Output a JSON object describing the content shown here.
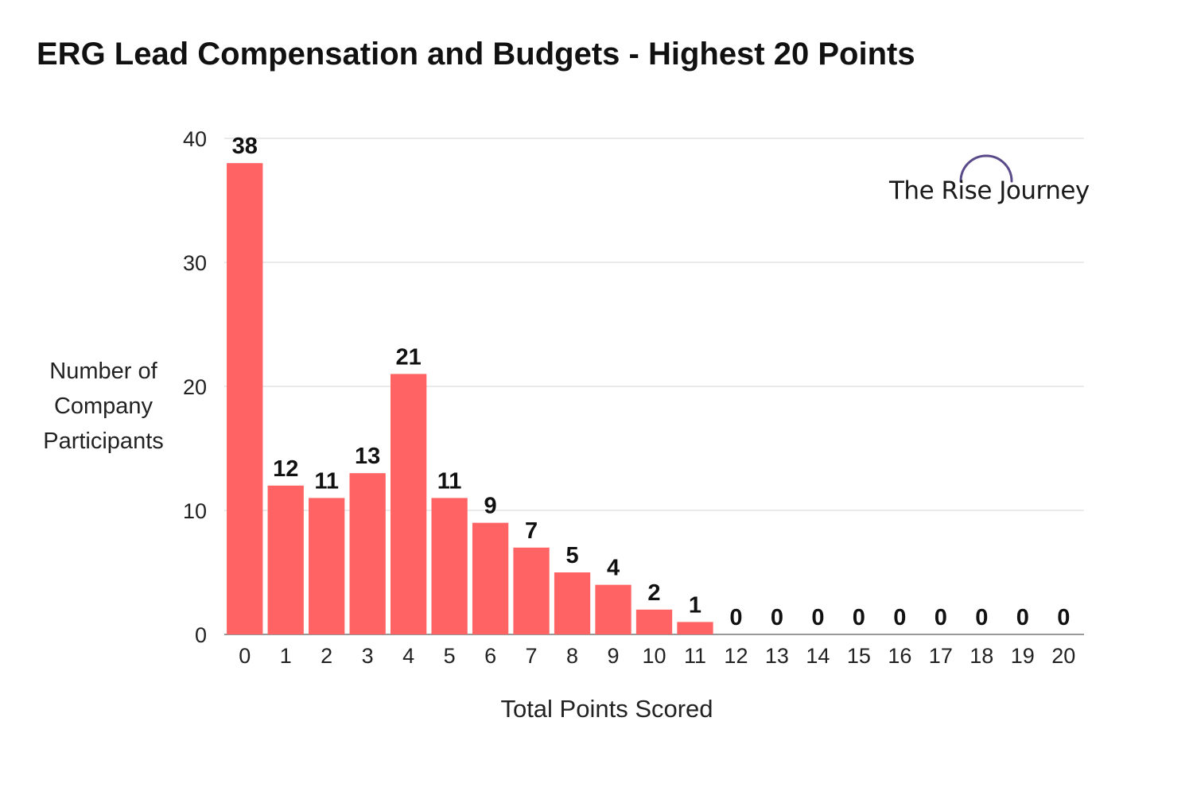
{
  "chart_data": {
    "type": "bar",
    "title": "ERG Lead Compensation and Budgets - Highest 20 Points",
    "xlabel": "Total Points Scored",
    "ylabel_lines": [
      "Number of",
      "Company",
      "Participants"
    ],
    "categories": [
      "0",
      "1",
      "2",
      "3",
      "4",
      "5",
      "6",
      "7",
      "8",
      "9",
      "10",
      "11",
      "12",
      "13",
      "14",
      "15",
      "16",
      "17",
      "18",
      "19",
      "20"
    ],
    "values": [
      38,
      12,
      11,
      13,
      21,
      11,
      9,
      7,
      5,
      4,
      2,
      1,
      0,
      0,
      0,
      0,
      0,
      0,
      0,
      0,
      0
    ],
    "ylim": [
      0,
      40
    ],
    "yticks": [
      0,
      10,
      20,
      30,
      40
    ],
    "grid": true,
    "bar_color": "#ff6363"
  },
  "watermark": {
    "text": "The Rise Journey",
    "arc_color": "#5b4a8a"
  }
}
